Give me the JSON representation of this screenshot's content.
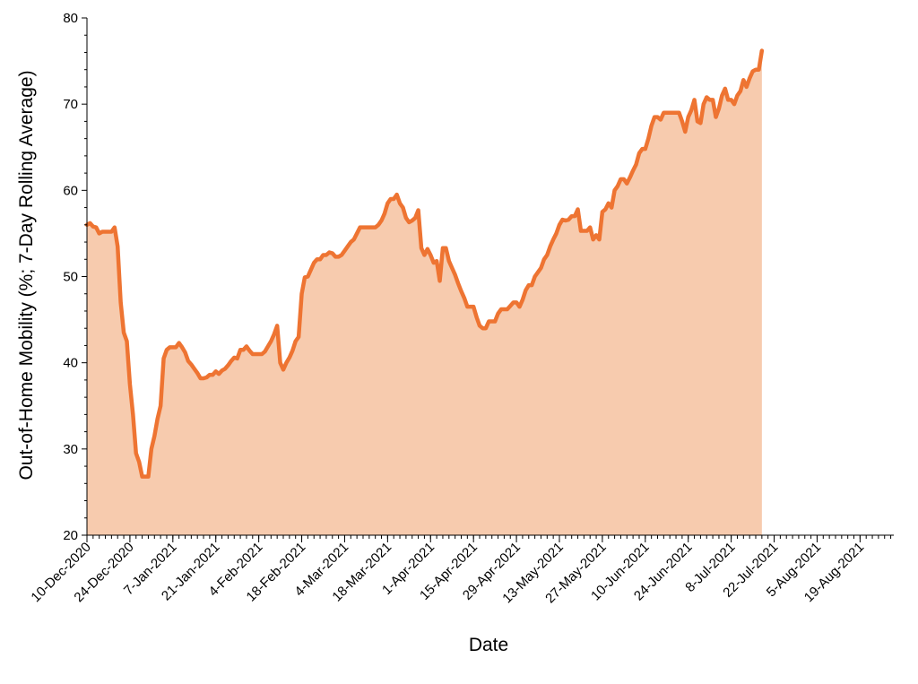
{
  "chart_data": {
    "type": "area",
    "xlabel": "Date",
    "ylabel": "Out-of-Home Mobility (%; 7-Day Rolling Average)",
    "ylim": [
      20,
      80
    ],
    "yticks": [
      20,
      30,
      40,
      50,
      60,
      70,
      80
    ],
    "xlim": [
      "2020-12-10",
      "2021-08-30"
    ],
    "x_tick_labels": [
      "10-Dec-2020",
      "24-Dec-2020",
      "7-Jan-2021",
      "21-Jan-2021",
      "4-Feb-2021",
      "18-Feb-2021",
      "4-Mar-2021",
      "18-Mar-2021",
      "1-Apr-2021",
      "15-Apr-2021",
      "29-Apr-2021",
      "13-May-2021",
      "27-May-2021",
      "10-Jun-2021",
      "24-Jun-2021",
      "8-Jul-2021",
      "22-Jul-2021",
      "5-Aug-2021",
      "19-Aug-2021"
    ],
    "grid": false,
    "colors": {
      "line": "#EE7432",
      "fill": "#F7CBAE"
    },
    "series": [
      {
        "points": [
          [
            "2020-12-10",
            56.0
          ],
          [
            "2020-12-11",
            56.2
          ],
          [
            "2020-12-12",
            55.8
          ],
          [
            "2020-12-13",
            55.7
          ],
          [
            "2020-12-14",
            55.0
          ],
          [
            "2020-12-15",
            55.2
          ],
          [
            "2020-12-16",
            55.2
          ],
          [
            "2020-12-17",
            55.2
          ],
          [
            "2020-12-18",
            55.2
          ],
          [
            "2020-12-19",
            55.7
          ],
          [
            "2020-12-20",
            53.5
          ],
          [
            "2020-12-21",
            47.0
          ],
          [
            "2020-12-22",
            43.5
          ],
          [
            "2020-12-23",
            42.5
          ],
          [
            "2020-12-24",
            37.5
          ],
          [
            "2020-12-25",
            34.0
          ],
          [
            "2020-12-26",
            29.5
          ],
          [
            "2020-12-27",
            28.5
          ],
          [
            "2020-12-28",
            26.8
          ],
          [
            "2020-12-29",
            26.8
          ],
          [
            "2020-12-30",
            26.8
          ],
          [
            "2020-12-31",
            30.0
          ],
          [
            "2021-01-01",
            31.5
          ],
          [
            "2021-01-02",
            33.5
          ],
          [
            "2021-01-03",
            35.0
          ],
          [
            "2021-01-04",
            40.5
          ],
          [
            "2021-01-05",
            41.5
          ],
          [
            "2021-01-06",
            41.8
          ],
          [
            "2021-01-07",
            41.8
          ],
          [
            "2021-01-08",
            41.8
          ],
          [
            "2021-01-09",
            42.3
          ],
          [
            "2021-01-10",
            41.8
          ],
          [
            "2021-01-11",
            41.2
          ],
          [
            "2021-01-12",
            40.2
          ],
          [
            "2021-01-13",
            39.8
          ],
          [
            "2021-01-14",
            39.3
          ],
          [
            "2021-01-15",
            38.8
          ],
          [
            "2021-01-16",
            38.2
          ],
          [
            "2021-01-17",
            38.2
          ],
          [
            "2021-01-18",
            38.3
          ],
          [
            "2021-01-19",
            38.6
          ],
          [
            "2021-01-20",
            38.6
          ],
          [
            "2021-01-21",
            39.0
          ],
          [
            "2021-01-22",
            38.7
          ],
          [
            "2021-01-23",
            39.1
          ],
          [
            "2021-01-24",
            39.3
          ],
          [
            "2021-01-25",
            39.7
          ],
          [
            "2021-01-26",
            40.2
          ],
          [
            "2021-01-27",
            40.6
          ],
          [
            "2021-01-28",
            40.5
          ],
          [
            "2021-01-29",
            41.5
          ],
          [
            "2021-01-30",
            41.5
          ],
          [
            "2021-01-31",
            41.9
          ],
          [
            "2021-02-01",
            41.4
          ],
          [
            "2021-02-02",
            41.0
          ],
          [
            "2021-02-03",
            41.0
          ],
          [
            "2021-02-04",
            41.0
          ],
          [
            "2021-02-05",
            41.0
          ],
          [
            "2021-02-06",
            41.3
          ],
          [
            "2021-02-07",
            41.9
          ],
          [
            "2021-02-08",
            42.5
          ],
          [
            "2021-02-09",
            43.3
          ],
          [
            "2021-02-10",
            44.3
          ],
          [
            "2021-02-11",
            40.0
          ],
          [
            "2021-02-12",
            39.2
          ],
          [
            "2021-02-13",
            40.0
          ],
          [
            "2021-02-14",
            40.6
          ],
          [
            "2021-02-15",
            41.4
          ],
          [
            "2021-02-16",
            42.5
          ],
          [
            "2021-02-17",
            43.0
          ],
          [
            "2021-02-18",
            48.0
          ],
          [
            "2021-02-19",
            49.9
          ],
          [
            "2021-02-20",
            50.0
          ],
          [
            "2021-02-21",
            50.8
          ],
          [
            "2021-02-22",
            51.6
          ],
          [
            "2021-02-23",
            52.0
          ],
          [
            "2021-02-24",
            52.0
          ],
          [
            "2021-02-25",
            52.5
          ],
          [
            "2021-02-26",
            52.5
          ],
          [
            "2021-02-27",
            52.8
          ],
          [
            "2021-02-28",
            52.7
          ],
          [
            "2021-03-01",
            52.3
          ],
          [
            "2021-03-02",
            52.3
          ],
          [
            "2021-03-03",
            52.5
          ],
          [
            "2021-03-04",
            53.0
          ],
          [
            "2021-03-05",
            53.5
          ],
          [
            "2021-03-06",
            54.0
          ],
          [
            "2021-03-07",
            54.3
          ],
          [
            "2021-03-08",
            55.0
          ],
          [
            "2021-03-09",
            55.7
          ],
          [
            "2021-03-10",
            55.7
          ],
          [
            "2021-03-11",
            55.7
          ],
          [
            "2021-03-12",
            55.7
          ],
          [
            "2021-03-13",
            55.7
          ],
          [
            "2021-03-14",
            55.7
          ],
          [
            "2021-03-15",
            56.0
          ],
          [
            "2021-03-16",
            56.5
          ],
          [
            "2021-03-17",
            57.3
          ],
          [
            "2021-03-18",
            58.5
          ],
          [
            "2021-03-19",
            59.0
          ],
          [
            "2021-03-20",
            59.0
          ],
          [
            "2021-03-21",
            59.5
          ],
          [
            "2021-03-22",
            58.5
          ],
          [
            "2021-03-23",
            58.0
          ],
          [
            "2021-03-24",
            56.8
          ],
          [
            "2021-03-25",
            56.3
          ],
          [
            "2021-03-26",
            56.5
          ],
          [
            "2021-03-27",
            56.8
          ],
          [
            "2021-03-28",
            57.7
          ],
          [
            "2021-03-29",
            53.3
          ],
          [
            "2021-03-30",
            52.5
          ],
          [
            "2021-03-31",
            53.2
          ],
          [
            "2021-04-01",
            52.5
          ],
          [
            "2021-04-02",
            51.6
          ],
          [
            "2021-04-03",
            51.8
          ],
          [
            "2021-04-04",
            49.5
          ],
          [
            "2021-04-05",
            53.3
          ],
          [
            "2021-04-06",
            53.3
          ],
          [
            "2021-04-07",
            51.8
          ],
          [
            "2021-04-08",
            51.0
          ],
          [
            "2021-04-09",
            50.2
          ],
          [
            "2021-04-10",
            49.2
          ],
          [
            "2021-04-11",
            48.3
          ],
          [
            "2021-04-12",
            47.5
          ],
          [
            "2021-04-13",
            46.5
          ],
          [
            "2021-04-14",
            46.5
          ],
          [
            "2021-04-15",
            46.5
          ],
          [
            "2021-04-16",
            45.3
          ],
          [
            "2021-04-17",
            44.3
          ],
          [
            "2021-04-18",
            44.0
          ],
          [
            "2021-04-19",
            44.0
          ],
          [
            "2021-04-20",
            44.8
          ],
          [
            "2021-04-21",
            44.8
          ],
          [
            "2021-04-22",
            44.8
          ],
          [
            "2021-04-23",
            45.7
          ],
          [
            "2021-04-24",
            46.2
          ],
          [
            "2021-04-25",
            46.2
          ],
          [
            "2021-04-26",
            46.2
          ],
          [
            "2021-04-27",
            46.6
          ],
          [
            "2021-04-28",
            47.0
          ],
          [
            "2021-04-29",
            47.0
          ],
          [
            "2021-04-30",
            46.5
          ],
          [
            "2021-05-01",
            47.3
          ],
          [
            "2021-05-02",
            48.4
          ],
          [
            "2021-05-03",
            49.0
          ],
          [
            "2021-05-04",
            49.0
          ],
          [
            "2021-05-05",
            50.0
          ],
          [
            "2021-05-06",
            50.5
          ],
          [
            "2021-05-07",
            51.0
          ],
          [
            "2021-05-08",
            52.0
          ],
          [
            "2021-05-09",
            52.5
          ],
          [
            "2021-05-10",
            53.5
          ],
          [
            "2021-05-11",
            54.3
          ],
          [
            "2021-05-12",
            55.0
          ],
          [
            "2021-05-13",
            56.0
          ],
          [
            "2021-05-14",
            56.6
          ],
          [
            "2021-05-15",
            56.5
          ],
          [
            "2021-05-16",
            56.6
          ],
          [
            "2021-05-17",
            57.0
          ],
          [
            "2021-05-18",
            57.0
          ],
          [
            "2021-05-19",
            57.8
          ],
          [
            "2021-05-20",
            55.3
          ],
          [
            "2021-05-21",
            55.3
          ],
          [
            "2021-05-22",
            55.3
          ],
          [
            "2021-05-23",
            55.7
          ],
          [
            "2021-05-24",
            54.3
          ],
          [
            "2021-05-25",
            54.8
          ],
          [
            "2021-05-26",
            54.3
          ],
          [
            "2021-05-27",
            57.5
          ],
          [
            "2021-05-28",
            57.8
          ],
          [
            "2021-05-29",
            58.5
          ],
          [
            "2021-05-30",
            58.0
          ],
          [
            "2021-05-31",
            60.0
          ],
          [
            "2021-06-01",
            60.5
          ],
          [
            "2021-06-02",
            61.3
          ],
          [
            "2021-06-03",
            61.3
          ],
          [
            "2021-06-04",
            60.8
          ],
          [
            "2021-06-05",
            61.5
          ],
          [
            "2021-06-06",
            62.3
          ],
          [
            "2021-06-07",
            63.0
          ],
          [
            "2021-06-08",
            64.3
          ],
          [
            "2021-06-09",
            64.8
          ],
          [
            "2021-06-10",
            64.8
          ],
          [
            "2021-06-11",
            66.0
          ],
          [
            "2021-06-12",
            67.5
          ],
          [
            "2021-06-13",
            68.5
          ],
          [
            "2021-06-14",
            68.5
          ],
          [
            "2021-06-15",
            68.2
          ],
          [
            "2021-06-16",
            69.0
          ],
          [
            "2021-06-17",
            69.0
          ],
          [
            "2021-06-18",
            69.0
          ],
          [
            "2021-06-19",
            69.0
          ],
          [
            "2021-06-20",
            69.0
          ],
          [
            "2021-06-21",
            69.0
          ],
          [
            "2021-06-22",
            68.0
          ],
          [
            "2021-06-23",
            66.8
          ],
          [
            "2021-06-24",
            68.5
          ],
          [
            "2021-06-25",
            69.3
          ],
          [
            "2021-06-26",
            70.5
          ],
          [
            "2021-06-27",
            68.0
          ],
          [
            "2021-06-28",
            67.8
          ],
          [
            "2021-06-29",
            70.0
          ],
          [
            "2021-06-30",
            70.8
          ],
          [
            "2021-07-01",
            70.5
          ],
          [
            "2021-07-02",
            70.5
          ],
          [
            "2021-07-03",
            68.5
          ],
          [
            "2021-07-04",
            69.5
          ],
          [
            "2021-07-05",
            71.0
          ],
          [
            "2021-07-06",
            71.8
          ],
          [
            "2021-07-07",
            70.5
          ],
          [
            "2021-07-08",
            70.5
          ],
          [
            "2021-07-09",
            70.0
          ],
          [
            "2021-07-10",
            71.0
          ],
          [
            "2021-07-11",
            71.5
          ],
          [
            "2021-07-12",
            72.8
          ],
          [
            "2021-07-13",
            72.0
          ],
          [
            "2021-07-14",
            73.0
          ],
          [
            "2021-07-15",
            73.8
          ],
          [
            "2021-07-16",
            74.0
          ],
          [
            "2021-07-17",
            74.0
          ],
          [
            "2021-07-18",
            76.2
          ]
        ]
      }
    ]
  }
}
